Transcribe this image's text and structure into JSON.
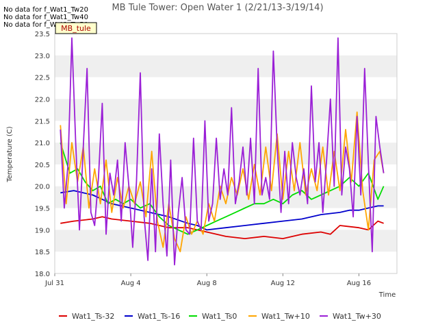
{
  "chart_data": {
    "type": "line",
    "title": "MB Tule Tower: Open Water 1 (2/21/13-3/19/14)",
    "xlabel": "Time",
    "ylabel": "Temperature (C)",
    "xlim": [
      0,
      18
    ],
    "ylim": [
      18.0,
      23.5
    ],
    "x_ticks": [
      {
        "value": 0,
        "label": "Jul 31"
      },
      {
        "value": 4,
        "label": "Aug 4"
      },
      {
        "value": 8,
        "label": "Aug 8"
      },
      {
        "value": 12,
        "label": "Aug 12"
      },
      {
        "value": 16,
        "label": "Aug 16"
      }
    ],
    "y_ticks": [
      18.0,
      18.5,
      19.0,
      19.5,
      20.0,
      20.5,
      21.0,
      21.5,
      22.0,
      22.5,
      23.0,
      23.5
    ],
    "grid": "horizontal alternating bands",
    "no_data_notes": [
      "No data for f_Wat1_Tw20",
      "No data for f_Wat1_Tw40",
      "No data for f_Wat1_Tw50"
    ],
    "site_label": "MB_tule",
    "legend_position": "bottom",
    "series": [
      {
        "name": "Wat1_Ts-32",
        "color": "#dd0000",
        "x": [
          0.3,
          1,
          2,
          2.5,
          3,
          4,
          5,
          6,
          7,
          7.5,
          8,
          9,
          10,
          11,
          12,
          13,
          14,
          14.5,
          15,
          16,
          16.5,
          17,
          17.3
        ],
        "y": [
          19.15,
          19.2,
          19.25,
          19.3,
          19.25,
          19.2,
          19.15,
          19.05,
          19.05,
          19.0,
          18.95,
          18.85,
          18.8,
          18.85,
          18.8,
          18.9,
          18.95,
          18.9,
          19.1,
          19.05,
          19.0,
          19.2,
          19.15
        ]
      },
      {
        "name": "Wat1_Ts-16",
        "color": "#0000cc",
        "x": [
          0.3,
          1,
          2,
          2.5,
          3,
          4,
          5,
          6,
          7,
          7.5,
          8,
          9,
          10,
          11,
          12,
          13,
          14,
          15,
          15.5,
          16,
          16.5,
          17,
          17.3
        ],
        "y": [
          19.85,
          19.9,
          19.8,
          19.7,
          19.6,
          19.5,
          19.4,
          19.3,
          19.15,
          19.1,
          19.0,
          19.05,
          19.1,
          19.15,
          19.2,
          19.25,
          19.35,
          19.4,
          19.45,
          19.45,
          19.5,
          19.55,
          19.55
        ]
      },
      {
        "name": "Wat1_Ts0",
        "color": "#00dd00",
        "x": [
          0.3,
          0.8,
          1.2,
          1.6,
          2,
          2.4,
          2.8,
          3.2,
          3.6,
          4,
          4.5,
          5,
          5.5,
          6,
          6.5,
          7,
          7.5,
          8,
          8.5,
          9,
          9.5,
          10,
          10.5,
          11,
          11.5,
          12,
          12.5,
          13,
          13.5,
          14,
          14.5,
          15,
          15.5,
          16,
          16.5,
          17,
          17.3
        ],
        "y": [
          21.0,
          20.3,
          20.4,
          20.1,
          19.9,
          20.0,
          19.6,
          19.7,
          19.6,
          19.7,
          19.5,
          19.6,
          19.3,
          19.1,
          19.0,
          18.9,
          19.0,
          19.1,
          19.2,
          19.3,
          19.4,
          19.5,
          19.6,
          19.6,
          19.7,
          19.6,
          19.8,
          19.9,
          19.7,
          19.8,
          19.9,
          20.0,
          20.2,
          20.0,
          20.3,
          19.7,
          20.0
        ]
      },
      {
        "name": "Wat1_Tw+10",
        "color": "#ffa500",
        "x": [
          0.3,
          0.6,
          0.9,
          1.2,
          1.5,
          1.8,
          2.1,
          2.4,
          2.7,
          3.0,
          3.3,
          3.6,
          3.9,
          4.2,
          4.5,
          4.8,
          5.1,
          5.4,
          5.7,
          6.0,
          6.3,
          6.6,
          6.9,
          7.2,
          7.5,
          7.8,
          8.1,
          8.4,
          8.7,
          9.0,
          9.3,
          9.6,
          9.9,
          10.2,
          10.5,
          10.8,
          11.1,
          11.4,
          11.7,
          12.0,
          12.3,
          12.6,
          12.9,
          13.2,
          13.5,
          13.8,
          14.1,
          14.4,
          14.7,
          15.0,
          15.3,
          15.6,
          15.9,
          16.2,
          16.5,
          16.8,
          17.1,
          17.3
        ],
        "y": [
          21.4,
          19.6,
          21.0,
          20.1,
          20.9,
          19.5,
          20.4,
          19.6,
          20.6,
          19.4,
          20.2,
          19.5,
          20.0,
          19.6,
          20.1,
          19.3,
          20.8,
          19.2,
          18.6,
          19.6,
          18.8,
          18.5,
          19.3,
          18.9,
          19.2,
          18.9,
          19.6,
          19.2,
          20.0,
          19.6,
          20.2,
          19.8,
          20.4,
          19.7,
          20.5,
          19.8,
          20.9,
          19.9,
          21.2,
          19.7,
          20.8,
          19.9,
          21.0,
          19.8,
          20.4,
          19.9,
          20.9,
          19.8,
          20.8,
          19.9,
          21.3,
          20.1,
          21.7,
          19.9,
          19.0,
          20.6,
          20.8,
          20.3
        ]
      },
      {
        "name": "Wat1_Tw+30",
        "color": "#9a1fd6",
        "x": [
          0.3,
          0.5,
          0.7,
          0.9,
          1.1,
          1.3,
          1.5,
          1.7,
          1.9,
          2.1,
          2.3,
          2.5,
          2.7,
          2.9,
          3.1,
          3.3,
          3.5,
          3.7,
          3.9,
          4.1,
          4.3,
          4.5,
          4.7,
          4.9,
          5.1,
          5.3,
          5.5,
          5.7,
          5.9,
          6.1,
          6.3,
          6.5,
          6.7,
          6.9,
          7.1,
          7.3,
          7.5,
          7.7,
          7.9,
          8.1,
          8.3,
          8.5,
          8.7,
          8.9,
          9.1,
          9.3,
          9.5,
          9.7,
          9.9,
          10.1,
          10.3,
          10.5,
          10.7,
          10.9,
          11.1,
          11.3,
          11.5,
          11.7,
          11.9,
          12.1,
          12.3,
          12.5,
          12.7,
          12.9,
          13.1,
          13.3,
          13.5,
          13.7,
          13.9,
          14.1,
          14.3,
          14.5,
          14.7,
          14.9,
          15.1,
          15.3,
          15.5,
          15.7,
          15.9,
          16.1,
          16.3,
          16.5,
          16.7,
          16.9,
          17.1,
          17.3
        ],
        "y": [
          21.3,
          19.5,
          20.5,
          23.4,
          21.0,
          19.0,
          20.9,
          22.7,
          19.4,
          19.1,
          20.2,
          21.9,
          18.9,
          20.3,
          19.8,
          20.6,
          19.2,
          21.0,
          20.0,
          18.6,
          20.1,
          22.6,
          19.3,
          18.3,
          20.4,
          18.5,
          21.2,
          19.6,
          18.4,
          20.6,
          18.2,
          19.4,
          20.2,
          19.0,
          18.9,
          21.1,
          19.2,
          19.0,
          21.5,
          19.2,
          19.6,
          21.1,
          19.7,
          20.4,
          19.8,
          21.8,
          19.6,
          20.1,
          20.9,
          19.8,
          21.1,
          19.6,
          22.7,
          19.8,
          20.2,
          19.7,
          23.1,
          20.9,
          19.4,
          20.8,
          19.6,
          21.0,
          20.2,
          19.8,
          20.4,
          19.6,
          22.3,
          20.1,
          21.0,
          19.4,
          20.6,
          22.0,
          20.0,
          23.4,
          19.8,
          20.9,
          20.4,
          19.3,
          21.6,
          19.8,
          22.7,
          20.5,
          18.5,
          21.6,
          20.9,
          20.3
        ]
      }
    ]
  }
}
